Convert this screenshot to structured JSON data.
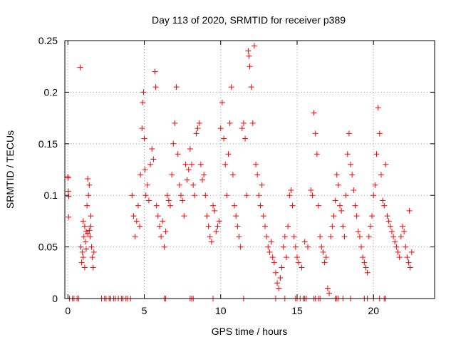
{
  "chart_data": {
    "type": "scatter",
    "title": "Day 113 of 2020, SRMTID for receiver p389",
    "xlabel": "GPS time / hours",
    "ylabel": "SRMTID / TECUs",
    "xlim": [
      -0.2,
      24
    ],
    "ylim": [
      0,
      0.25
    ],
    "xticks": [
      0,
      5,
      10,
      15,
      20
    ],
    "yticks": [
      0,
      0.05,
      0.1,
      0.15,
      0.2,
      0.25
    ],
    "ytick_labels": [
      "0",
      "0.05",
      "0.1",
      "0.15",
      "0.2",
      "0.25"
    ],
    "grid": true,
    "marker": "+",
    "color": "#ff0000",
    "points": [
      [
        0.0,
        0.118
      ],
      [
        0.02,
        0.117
      ],
      [
        0.03,
        0.104
      ],
      [
        0.05,
        0.099
      ],
      [
        0.04,
        0.079
      ],
      [
        0.8,
        0.224
      ],
      [
        0.85,
        0.05
      ],
      [
        0.9,
        0.035
      ],
      [
        0.95,
        0.045
      ],
      [
        1.0,
        0.075
      ],
      [
        1.05,
        0.06
      ],
      [
        1.1,
        0.07
      ],
      [
        1.15,
        0.055
      ],
      [
        1.2,
        0.065
      ],
      [
        1.25,
        0.09
      ],
      [
        1.3,
        0.116
      ],
      [
        1.35,
        0.1
      ],
      [
        1.4,
        0.11
      ],
      [
        1.45,
        0.06
      ],
      [
        1.5,
        0.07
      ],
      [
        1.55,
        0.05
      ],
      [
        1.6,
        0.04
      ],
      [
        1.65,
        0.03
      ],
      [
        1.7,
        0.045
      ],
      [
        1.3,
        0.063
      ],
      [
        1.4,
        0.066
      ],
      [
        1.5,
        0.08
      ],
      [
        1.2,
        0.048
      ],
      [
        1.0,
        0.04
      ],
      [
        1.1,
        0.03
      ],
      [
        4.2,
        0.1
      ],
      [
        4.3,
        0.08
      ],
      [
        4.4,
        0.06
      ],
      [
        4.5,
        0.075
      ],
      [
        4.6,
        0.09
      ],
      [
        4.7,
        0.07
      ],
      [
        4.75,
        0.12
      ],
      [
        4.85,
        0.165
      ],
      [
        4.9,
        0.19
      ],
      [
        4.95,
        0.2
      ],
      [
        5.0,
        0.155
      ],
      [
        5.05,
        0.125
      ],
      [
        5.1,
        0.1
      ],
      [
        5.2,
        0.11
      ],
      [
        5.3,
        0.095
      ],
      [
        5.4,
        0.13
      ],
      [
        5.5,
        0.145
      ],
      [
        5.6,
        0.135
      ],
      [
        5.7,
        0.22
      ],
      [
        5.75,
        0.205
      ],
      [
        5.8,
        0.09
      ],
      [
        5.9,
        0.08
      ],
      [
        6.0,
        0.07
      ],
      [
        6.1,
        0.06
      ],
      [
        6.2,
        0.075
      ],
      [
        6.3,
        0.05
      ],
      [
        6.4,
        0.065
      ],
      [
        6.5,
        0.1
      ],
      [
        6.6,
        0.095
      ],
      [
        6.7,
        0.09
      ],
      [
        6.8,
        0.12
      ],
      [
        6.9,
        0.15
      ],
      [
        7.0,
        0.17
      ],
      [
        7.1,
        0.205
      ],
      [
        7.2,
        0.14
      ],
      [
        7.3,
        0.11
      ],
      [
        7.4,
        0.1
      ],
      [
        7.5,
        0.095
      ],
      [
        7.6,
        0.08
      ],
      [
        7.7,
        0.13
      ],
      [
        7.8,
        0.115
      ],
      [
        7.9,
        0.125
      ],
      [
        8.0,
        0.145
      ],
      [
        8.1,
        0.13
      ],
      [
        8.2,
        0.11
      ],
      [
        8.3,
        0.1
      ],
      [
        8.4,
        0.16
      ],
      [
        8.5,
        0.165
      ],
      [
        8.6,
        0.17
      ],
      [
        8.7,
        0.13
      ],
      [
        8.8,
        0.115
      ],
      [
        8.9,
        0.12
      ],
      [
        9.0,
        0.1
      ],
      [
        9.1,
        0.08
      ],
      [
        9.2,
        0.07
      ],
      [
        9.3,
        0.06
      ],
      [
        9.4,
        0.055
      ],
      [
        9.5,
        0.09
      ],
      [
        9.6,
        0.085
      ],
      [
        9.7,
        0.065
      ],
      [
        9.8,
        0.07
      ],
      [
        9.9,
        0.075
      ],
      [
        10.0,
        0.165
      ],
      [
        10.1,
        0.19
      ],
      [
        10.2,
        0.155
      ],
      [
        10.3,
        0.13
      ],
      [
        10.4,
        0.1
      ],
      [
        10.5,
        0.14
      ],
      [
        10.6,
        0.17
      ],
      [
        10.7,
        0.205
      ],
      [
        10.8,
        0.12
      ],
      [
        10.9,
        0.09
      ],
      [
        11.0,
        0.08
      ],
      [
        11.1,
        0.07
      ],
      [
        11.2,
        0.06
      ],
      [
        11.3,
        0.05
      ],
      [
        11.4,
        0.165
      ],
      [
        11.5,
        0.17
      ],
      [
        11.6,
        0.155
      ],
      [
        11.7,
        0.1
      ],
      [
        11.8,
        0.24
      ],
      [
        11.85,
        0.235
      ],
      [
        11.9,
        0.225
      ],
      [
        12.0,
        0.205
      ],
      [
        12.1,
        0.17
      ],
      [
        12.2,
        0.245
      ],
      [
        12.3,
        0.13
      ],
      [
        12.4,
        0.12
      ],
      [
        12.5,
        0.1
      ],
      [
        12.6,
        0.09
      ],
      [
        12.7,
        0.11
      ],
      [
        12.8,
        0.08
      ],
      [
        12.9,
        0.07
      ],
      [
        13.0,
        0.06
      ],
      [
        13.1,
        0.05
      ],
      [
        13.2,
        0.045
      ],
      [
        13.3,
        0.055
      ],
      [
        13.4,
        0.04
      ],
      [
        13.5,
        0.035
      ],
      [
        13.6,
        0.025
      ],
      [
        13.7,
        0.015
      ],
      [
        13.8,
        0.01
      ],
      [
        13.9,
        0.02
      ],
      [
        14.0,
        0.03
      ],
      [
        14.1,
        0.05
      ],
      [
        14.2,
        0.06
      ],
      [
        14.3,
        0.04
      ],
      [
        14.4,
        0.07
      ],
      [
        14.5,
        0.1
      ],
      [
        14.6,
        0.105
      ],
      [
        14.7,
        0.09
      ],
      [
        14.8,
        0.06
      ],
      [
        14.9,
        0.05
      ],
      [
        15.0,
        0.04
      ],
      [
        15.1,
        0.035
      ],
      [
        15.3,
        0.03
      ],
      [
        15.5,
        0.055
      ],
      [
        15.7,
        0.05
      ],
      [
        15.9,
        0.105
      ],
      [
        16.0,
        0.1
      ],
      [
        16.1,
        0.18
      ],
      [
        16.2,
        0.16
      ],
      [
        16.3,
        0.14
      ],
      [
        16.4,
        0.09
      ],
      [
        16.5,
        0.06
      ],
      [
        16.6,
        0.05
      ],
      [
        16.7,
        0.045
      ],
      [
        16.8,
        0.035
      ],
      [
        16.9,
        0.04
      ],
      [
        17.0,
        0.01
      ],
      [
        17.1,
        0.005
      ],
      [
        17.2,
        0.06
      ],
      [
        17.3,
        0.07
      ],
      [
        17.4,
        0.08
      ],
      [
        17.5,
        0.095
      ],
      [
        17.6,
        0.12
      ],
      [
        17.7,
        0.11
      ],
      [
        17.8,
        0.09
      ],
      [
        17.9,
        0.085
      ],
      [
        18.0,
        0.07
      ],
      [
        18.1,
        0.06
      ],
      [
        18.2,
        0.1
      ],
      [
        18.3,
        0.14
      ],
      [
        18.4,
        0.16
      ],
      [
        18.5,
        0.13
      ],
      [
        18.6,
        0.12
      ],
      [
        18.7,
        0.105
      ],
      [
        18.8,
        0.09
      ],
      [
        18.9,
        0.08
      ],
      [
        19.0,
        0.065
      ],
      [
        19.1,
        0.06
      ],
      [
        19.2,
        0.05
      ],
      [
        19.3,
        0.04
      ],
      [
        19.4,
        0.035
      ],
      [
        19.5,
        0.03
      ],
      [
        19.6,
        0.025
      ],
      [
        19.7,
        0.06
      ],
      [
        19.8,
        0.07
      ],
      [
        19.9,
        0.08
      ],
      [
        20.0,
        0.1
      ],
      [
        20.1,
        0.11
      ],
      [
        20.2,
        0.14
      ],
      [
        20.3,
        0.185
      ],
      [
        20.4,
        0.16
      ],
      [
        20.5,
        0.12
      ],
      [
        20.6,
        0.095
      ],
      [
        20.7,
        0.09
      ],
      [
        20.8,
        0.13
      ],
      [
        20.9,
        0.08
      ],
      [
        21.0,
        0.075
      ],
      [
        21.1,
        0.07
      ],
      [
        21.2,
        0.065
      ],
      [
        21.3,
        0.06
      ],
      [
        21.4,
        0.055
      ],
      [
        21.5,
        0.05
      ],
      [
        21.6,
        0.045
      ],
      [
        21.7,
        0.04
      ],
      [
        21.8,
        0.06
      ],
      [
        21.9,
        0.07
      ],
      [
        22.0,
        0.065
      ],
      [
        22.1,
        0.05
      ],
      [
        22.2,
        0.04
      ],
      [
        22.3,
        0.035
      ],
      [
        22.4,
        0.03
      ],
      [
        22.5,
        0.045
      ],
      [
        22.35,
        0.085
      ]
    ],
    "zero_points": [
      0.1,
      0.3,
      0.4,
      0.6,
      0.7,
      2.2,
      2.4,
      2.5,
      2.7,
      2.8,
      3.0,
      3.1,
      3.3,
      3.5,
      3.6,
      3.8,
      3.9,
      4.1,
      6.3,
      6.4,
      8.0,
      8.1,
      8.2,
      9.5,
      11.5,
      13.6,
      14.2,
      14.9,
      15.0,
      15.2,
      15.4,
      15.5,
      15.6,
      16.1,
      16.2,
      16.4,
      16.5,
      17.5,
      17.6,
      17.7,
      18.0,
      18.5,
      19.4,
      19.6,
      20.0,
      20.4,
      20.7,
      20.8
    ]
  }
}
